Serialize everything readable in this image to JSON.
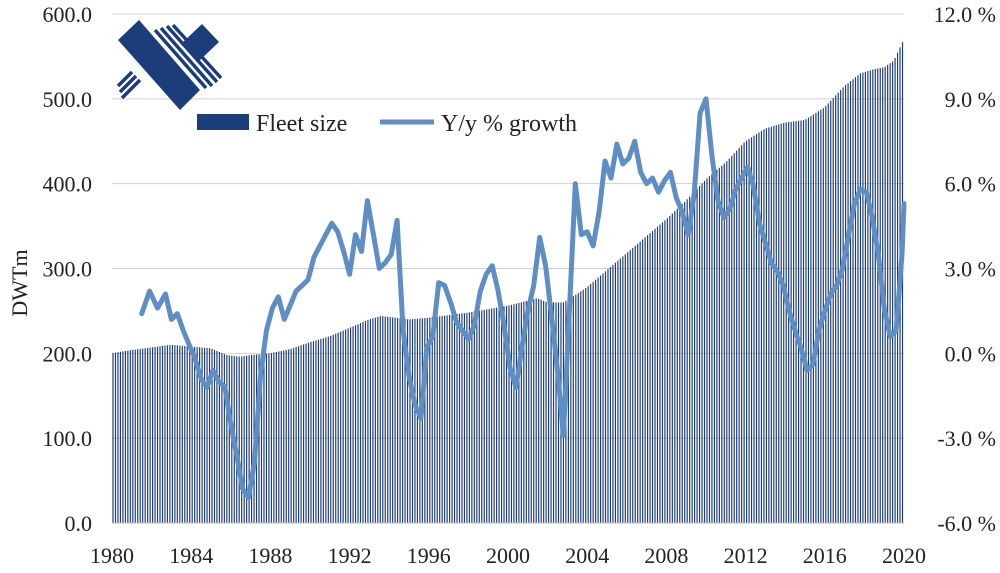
{
  "chart_data": {
    "type": "bar",
    "title": "",
    "ylabel": "DWTm",
    "y2label": "",
    "x_range": [
      1980,
      2020
    ],
    "ylim": [
      0,
      600
    ],
    "y2lim": [
      -6,
      12
    ],
    "grid": "horizontal",
    "legend_position": "top-left",
    "x_ticks": [
      "1980",
      "1984",
      "1988",
      "1992",
      "1996",
      "2000",
      "2004",
      "2008",
      "2012",
      "2016",
      "2020"
    ],
    "y_ticks": [
      "0.0",
      "100.0",
      "200.0",
      "300.0",
      "400.0",
      "500.0",
      "600.0"
    ],
    "y2_ticks": [
      "-6.0 %",
      "-3.0 %",
      "0.0 %",
      "3.0 %",
      "6.0 %",
      "9.0 %",
      "12.0 %"
    ],
    "series": [
      {
        "name": "Fleet size",
        "kind": "bar",
        "axis": "left",
        "color": "#1c3d7a",
        "x": [
          1980.0,
          1981.0,
          1982.0,
          1983.0,
          1984.0,
          1985.0,
          1985.8,
          1986.5,
          1987.0,
          1988.0,
          1989.0,
          1990.0,
          1991.0,
          1992.0,
          1993.0,
          1993.6,
          1994.0,
          1995.0,
          1996.0,
          1997.0,
          1998.0,
          1999.0,
          2000.0,
          2001.0,
          2001.5,
          2002.0,
          2002.8,
          2003.5,
          2004.0,
          2005.0,
          2006.0,
          2007.0,
          2008.0,
          2009.0,
          2010.0,
          2011.0,
          2012.0,
          2013.0,
          2014.0,
          2015.0,
          2016.0,
          2017.0,
          2017.8,
          2018.5,
          2019.0,
          2019.5,
          2020.0
        ],
        "values": [
          200,
          204,
          207,
          210,
          208,
          206,
          198,
          196,
          198,
          200,
          205,
          213,
          220,
          230,
          240,
          244,
          243,
          240,
          242,
          245,
          248,
          252,
          256,
          262,
          265,
          260,
          260,
          270,
          278,
          298,
          318,
          338,
          358,
          380,
          405,
          425,
          450,
          465,
          472,
          475,
          490,
          515,
          530,
          535,
          537,
          545,
          570
        ]
      },
      {
        "name": "Y/y % growth",
        "kind": "line",
        "axis": "right",
        "color": "#5e8ec3",
        "x": [
          1981.5,
          1981.9,
          1982.3,
          1982.7,
          1983.0,
          1983.3,
          1983.6,
          1983.9,
          1984.2,
          1984.5,
          1984.8,
          1985.1,
          1985.4,
          1985.7,
          1986.0,
          1986.3,
          1986.6,
          1986.9,
          1987.2,
          1987.5,
          1987.8,
          1988.1,
          1988.4,
          1988.7,
          1989.0,
          1989.3,
          1989.6,
          1989.9,
          1990.2,
          1990.5,
          1990.8,
          1991.1,
          1991.4,
          1991.7,
          1992.0,
          1992.3,
          1992.6,
          1992.9,
          1993.2,
          1993.5,
          1993.8,
          1994.1,
          1994.4,
          1994.7,
          1995.0,
          1995.3,
          1995.6,
          1995.9,
          1996.2,
          1996.5,
          1996.8,
          1997.1,
          1997.4,
          1997.7,
          1998.0,
          1998.3,
          1998.6,
          1998.9,
          1999.2,
          1999.5,
          1999.8,
          2000.1,
          2000.4,
          2000.7,
          2001.0,
          2001.3,
          2001.6,
          2001.9,
          2002.2,
          2002.5,
          2002.8,
          2003.1,
          2003.4,
          2003.7,
          2004.0,
          2004.3,
          2004.6,
          2004.9,
          2005.2,
          2005.5,
          2005.8,
          2006.1,
          2006.4,
          2006.7,
          2007.0,
          2007.3,
          2007.6,
          2007.9,
          2008.2,
          2008.5,
          2008.8,
          2009.1,
          2009.4,
          2009.7,
          2010.0,
          2010.3,
          2010.6,
          2010.9,
          2011.2,
          2011.5,
          2011.8,
          2012.1,
          2012.4,
          2012.7,
          2013.0,
          2013.3,
          2013.6,
          2013.9,
          2014.2,
          2014.5,
          2014.8,
          2015.1,
          2015.4,
          2015.7,
          2016.0,
          2016.3,
          2016.6,
          2016.9,
          2017.2,
          2017.5,
          2017.8,
          2018.1,
          2018.4,
          2018.7,
          2019.0,
          2019.3,
          2019.6,
          2019.9,
          2020.0
        ],
        "values": [
          1.4,
          2.2,
          1.6,
          2.1,
          1.2,
          1.4,
          0.8,
          0.3,
          -0.2,
          -0.9,
          -1.2,
          -0.6,
          -1.0,
          -1.2,
          -2.5,
          -3.6,
          -4.8,
          -5.1,
          -3.8,
          -0.8,
          0.8,
          1.6,
          2.0,
          1.2,
          1.7,
          2.2,
          2.4,
          2.6,
          3.4,
          3.8,
          4.2,
          4.6,
          4.3,
          3.6,
          2.8,
          4.2,
          3.6,
          5.4,
          4.2,
          3.0,
          3.2,
          3.5,
          4.7,
          0.8,
          -0.8,
          -1.8,
          -2.3,
          0.2,
          0.6,
          2.5,
          2.4,
          1.8,
          1.1,
          0.8,
          0.5,
          1.0,
          2.2,
          2.8,
          3.1,
          2.2,
          1.0,
          -0.5,
          -1.2,
          0.2,
          1.5,
          2.4,
          4.1,
          3.1,
          1.3,
          -0.6,
          -2.9,
          1.5,
          6.0,
          4.2,
          4.3,
          3.8,
          5.0,
          6.8,
          6.2,
          7.4,
          6.7,
          6.9,
          7.5,
          6.4,
          6.0,
          6.2,
          5.7,
          6.1,
          6.4,
          5.5,
          5.0,
          4.2,
          5.6,
          8.5,
          9.0,
          7.0,
          5.4,
          4.8,
          5.1,
          5.8,
          6.2,
          6.6,
          5.9,
          4.6,
          3.9,
          3.2,
          2.9,
          2.4,
          1.5,
          0.8,
          0.2,
          -0.6,
          -0.4,
          0.8,
          1.5,
          2.1,
          2.4,
          3.0,
          4.2,
          5.3,
          5.8,
          5.7,
          4.8,
          3.5,
          1.6,
          0.6,
          0.8,
          3.5,
          5.3
        ]
      }
    ]
  }
}
